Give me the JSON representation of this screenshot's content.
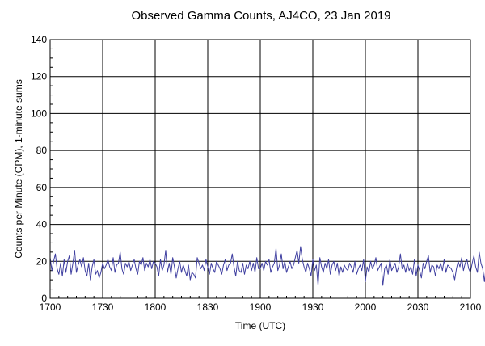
{
  "chart_data": {
    "type": "line",
    "title": "Observed Gamma Counts, AJ4CO, 23 Jan 2019",
    "xlabel": "Time (UTC)",
    "ylabel": "Counts per Minute (CPM), 1-minute sums",
    "x_tick_labels": [
      "1700",
      "1730",
      "1800",
      "1830",
      "1900",
      "1930",
      "2000",
      "2030",
      "2100"
    ],
    "x_range_minutes": [
      0,
      240
    ],
    "y_ticks": [
      0,
      20,
      40,
      60,
      80,
      100,
      120,
      140
    ],
    "ylim": [
      0,
      140
    ],
    "grid": true,
    "series_color": "#3f3fa0",
    "series": [
      {
        "x_start": "17:00",
        "x_step_minutes": 1,
        "values": [
          22,
          15,
          20,
          24,
          16,
          13,
          19,
          12,
          21,
          14,
          20,
          23,
          13,
          19,
          26,
          14,
          18,
          21,
          17,
          22,
          15,
          12,
          19,
          10,
          17,
          21,
          13,
          15,
          11,
          14,
          19,
          16,
          18,
          21,
          17,
          15,
          22,
          14,
          18,
          19,
          25,
          16,
          13,
          19,
          17,
          20,
          15,
          18,
          21,
          16,
          13,
          20,
          18,
          22,
          15,
          19,
          17,
          21,
          16,
          20,
          19,
          17,
          12,
          21,
          15,
          18,
          26,
          14,
          19,
          13,
          22,
          17,
          11,
          16,
          20,
          14,
          18,
          15,
          12,
          18,
          10,
          14,
          13,
          11,
          22,
          19,
          16,
          18,
          15,
          21,
          17,
          13,
          19,
          16,
          14,
          20,
          18,
          16,
          13,
          18,
          21,
          15,
          18,
          19,
          24,
          17,
          12,
          20,
          15,
          14,
          19,
          13,
          18,
          16,
          20,
          15,
          19,
          14,
          22,
          16,
          16,
          19,
          15,
          20,
          18,
          21,
          14,
          17,
          19,
          27,
          15,
          18,
          24,
          16,
          20,
          14,
          17,
          20,
          16,
          18,
          22,
          26,
          19,
          28,
          21,
          17,
          14,
          19,
          16,
          12,
          21,
          15,
          18,
          7,
          22,
          17,
          14,
          19,
          16,
          21,
          13,
          18,
          20,
          15,
          19,
          12,
          17,
          14,
          18,
          16,
          15,
          19,
          17,
          14,
          20,
          13,
          16,
          18,
          15,
          21,
          9,
          17,
          14,
          20,
          16,
          18,
          22,
          15,
          17,
          19,
          7,
          16,
          18,
          13,
          21,
          15,
          17,
          19,
          14,
          17,
          24,
          16,
          18,
          14,
          19,
          15,
          17,
          13,
          21,
          12,
          18,
          15,
          11,
          19,
          16,
          20,
          23,
          14,
          18,
          17,
          12,
          18,
          16,
          19,
          15,
          21,
          14,
          18,
          17,
          16,
          14,
          10,
          16,
          20,
          17,
          22,
          15,
          19,
          21,
          16,
          14,
          19,
          23,
          17,
          14,
          25,
          19,
          16,
          9,
          18,
          23,
          14,
          15,
          18
        ]
      }
    ]
  }
}
